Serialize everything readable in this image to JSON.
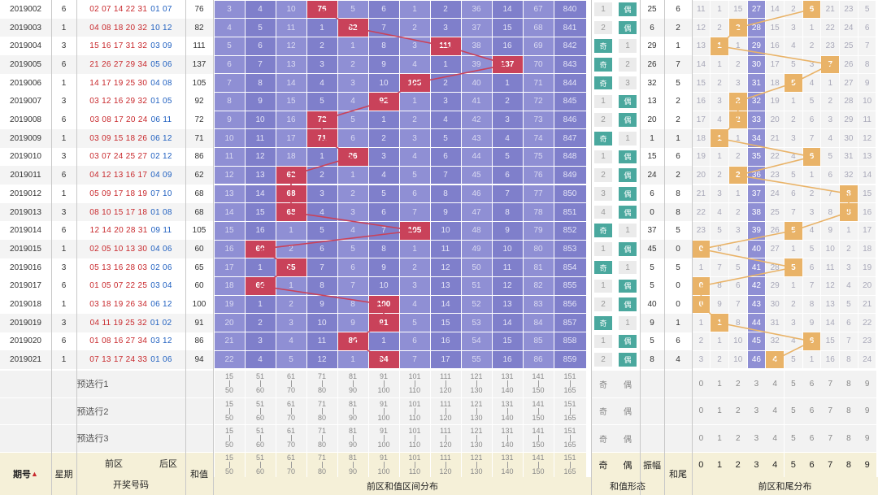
{
  "colors": {
    "hit": "#c9425a",
    "purple": "#8f8fd4",
    "tail_hit": "#e9b368",
    "line_sum": "#c9425a",
    "line_tail": "#e9b368",
    "teal": "#4aa89e"
  },
  "sum_ranges": [
    [
      "15",
      "50"
    ],
    [
      "51",
      "60"
    ],
    [
      "61",
      "70"
    ],
    [
      "71",
      "80"
    ],
    [
      "81",
      "90"
    ],
    [
      "91",
      "100"
    ],
    [
      "101",
      "110"
    ],
    [
      "111",
      "120"
    ],
    [
      "121",
      "130"
    ],
    [
      "131",
      "140"
    ],
    [
      "141",
      "150"
    ],
    [
      "151",
      "165"
    ]
  ],
  "oe_labels": [
    "奇",
    "偶"
  ],
  "tail_digits": [
    "0",
    "1",
    "2",
    "3",
    "4",
    "5",
    "6",
    "7",
    "8",
    "9"
  ],
  "preselect_labels": [
    "预选行1",
    "预选行2",
    "预选行3"
  ],
  "header": {
    "issue": "期号",
    "sort_icon": "sort-icon",
    "week": "星期",
    "front": "前区",
    "back": "后区",
    "draw": "开奖号码",
    "sum": "和值",
    "sum_dist": "前区和值区间分布",
    "odd": "奇",
    "even": "偶",
    "amp": "振幅",
    "shape": "和值形态",
    "tail": "和尾",
    "tail_dist": "前区和尾分布"
  },
  "rows": [
    {
      "issue": "2019002",
      "week": "6",
      "front": "02 07 14 22 31",
      "back": "01 07",
      "sum": "76",
      "dist": [
        "3",
        "4",
        "10",
        "76",
        "5",
        "6",
        "1",
        "2",
        "36",
        "14",
        "67",
        "840"
      ],
      "hit": 3,
      "oe": [
        "1",
        "偶"
      ],
      "oe_hit": 1,
      "amp": "25",
      "tail": "6",
      "tails": [
        "11",
        "1",
        "15",
        "27",
        "14",
        "2",
        "6",
        "21",
        "23",
        "5"
      ],
      "tail_hit": 6
    },
    {
      "issue": "2019003",
      "week": "1",
      "front": "04 08 18 20 32",
      "back": "10 12",
      "sum": "82",
      "dist": [
        "4",
        "5",
        "11",
        "1",
        "82",
        "7",
        "2",
        "3",
        "37",
        "15",
        "68",
        "841"
      ],
      "hit": 4,
      "oe": [
        "2",
        "偶"
      ],
      "oe_hit": 1,
      "amp": "6",
      "tail": "2",
      "tails": [
        "12",
        "2",
        "2",
        "28",
        "15",
        "3",
        "1",
        "22",
        "24",
        "6"
      ],
      "tail_hit": 2
    },
    {
      "issue": "2019004",
      "week": "3",
      "front": "15 16 17 31 32",
      "back": "03 09",
      "sum": "111",
      "dist": [
        "5",
        "6",
        "12",
        "2",
        "1",
        "8",
        "3",
        "111",
        "38",
        "16",
        "69",
        "842"
      ],
      "hit": 7,
      "oe": [
        "奇",
        "1"
      ],
      "oe_hit": 0,
      "amp": "29",
      "tail": "1",
      "tails": [
        "13",
        "1",
        "1",
        "29",
        "16",
        "4",
        "2",
        "23",
        "25",
        "7"
      ],
      "tail_hit": 1
    },
    {
      "issue": "2019005",
      "week": "6",
      "front": "21 26 27 29 34",
      "back": "05 06",
      "sum": "137",
      "dist": [
        "6",
        "7",
        "13",
        "3",
        "2",
        "9",
        "4",
        "1",
        "39",
        "137",
        "70",
        "843"
      ],
      "hit": 9,
      "oe": [
        "奇",
        "2"
      ],
      "oe_hit": 0,
      "amp": "26",
      "tail": "7",
      "tails": [
        "14",
        "1",
        "2",
        "30",
        "17",
        "5",
        "3",
        "7",
        "26",
        "8"
      ],
      "tail_hit": 7
    },
    {
      "issue": "2019006",
      "week": "1",
      "front": "14 17 19 25 30",
      "back": "04 08",
      "sum": "105",
      "dist": [
        "7",
        "8",
        "14",
        "4",
        "3",
        "10",
        "105",
        "2",
        "40",
        "1",
        "71",
        "844"
      ],
      "hit": 6,
      "oe": [
        "奇",
        "3"
      ],
      "oe_hit": 0,
      "amp": "32",
      "tail": "5",
      "tails": [
        "15",
        "2",
        "3",
        "31",
        "18",
        "5",
        "4",
        "1",
        "27",
        "9"
      ],
      "tail_hit": 5
    },
    {
      "issue": "2019007",
      "week": "3",
      "front": "03 12 16 29 32",
      "back": "01 05",
      "sum": "92",
      "dist": [
        "8",
        "9",
        "15",
        "5",
        "4",
        "92",
        "1",
        "3",
        "41",
        "2",
        "72",
        "845"
      ],
      "hit": 5,
      "oe": [
        "1",
        "偶"
      ],
      "oe_hit": 1,
      "amp": "13",
      "tail": "2",
      "tails": [
        "16",
        "3",
        "2",
        "32",
        "19",
        "1",
        "5",
        "2",
        "28",
        "10"
      ],
      "tail_hit": 2
    },
    {
      "issue": "2019008",
      "week": "6",
      "front": "03 08 17 20 24",
      "back": "06 11",
      "sum": "72",
      "dist": [
        "9",
        "10",
        "16",
        "72",
        "5",
        "1",
        "2",
        "4",
        "42",
        "3",
        "73",
        "846"
      ],
      "hit": 3,
      "oe": [
        "2",
        "偶"
      ],
      "oe_hit": 1,
      "amp": "20",
      "tail": "2",
      "tails": [
        "17",
        "4",
        "2",
        "33",
        "20",
        "2",
        "6",
        "3",
        "29",
        "11"
      ],
      "tail_hit": 2
    },
    {
      "issue": "2019009",
      "week": "1",
      "front": "03 09 15 18 26",
      "back": "06 12",
      "sum": "71",
      "dist": [
        "10",
        "11",
        "17",
        "71",
        "6",
        "2",
        "3",
        "5",
        "43",
        "4",
        "74",
        "847"
      ],
      "hit": 3,
      "oe": [
        "奇",
        "1"
      ],
      "oe_hit": 0,
      "amp": "1",
      "tail": "1",
      "tails": [
        "18",
        "1",
        "1",
        "34",
        "21",
        "3",
        "7",
        "4",
        "30",
        "12"
      ],
      "tail_hit": 1
    },
    {
      "issue": "2019010",
      "week": "3",
      "front": "03 07 24 25 27",
      "back": "02 12",
      "sum": "86",
      "dist": [
        "11",
        "12",
        "18",
        "1",
        "86",
        "3",
        "4",
        "6",
        "44",
        "5",
        "75",
        "848"
      ],
      "hit": 4,
      "oe": [
        "1",
        "偶"
      ],
      "oe_hit": 1,
      "amp": "15",
      "tail": "6",
      "tails": [
        "19",
        "1",
        "2",
        "35",
        "22",
        "4",
        "6",
        "5",
        "31",
        "13"
      ],
      "tail_hit": 6
    },
    {
      "issue": "2019011",
      "week": "6",
      "front": "04 12 13 16 17",
      "back": "04 09",
      "sum": "62",
      "dist": [
        "12",
        "13",
        "62",
        "2",
        "1",
        "4",
        "5",
        "7",
        "45",
        "6",
        "76",
        "849"
      ],
      "hit": 2,
      "oe": [
        "2",
        "偶"
      ],
      "oe_hit": 1,
      "amp": "24",
      "tail": "2",
      "tails": [
        "20",
        "2",
        "2",
        "36",
        "23",
        "5",
        "1",
        "6",
        "32",
        "14"
      ],
      "tail_hit": 2
    },
    {
      "issue": "2019012",
      "week": "1",
      "front": "05 09 17 18 19",
      "back": "07 10",
      "sum": "68",
      "dist": [
        "13",
        "14",
        "68",
        "3",
        "2",
        "5",
        "6",
        "8",
        "46",
        "7",
        "77",
        "850"
      ],
      "hit": 2,
      "oe": [
        "3",
        "偶"
      ],
      "oe_hit": 1,
      "amp": "6",
      "tail": "8",
      "tails": [
        "21",
        "3",
        "1",
        "37",
        "24",
        "6",
        "2",
        "7",
        "8",
        "15"
      ],
      "tail_hit": 8
    },
    {
      "issue": "2019013",
      "week": "3",
      "front": "08 10 15 17 18",
      "back": "01 08",
      "sum": "68",
      "dist": [
        "14",
        "15",
        "68",
        "4",
        "3",
        "6",
        "7",
        "9",
        "47",
        "8",
        "78",
        "851"
      ],
      "hit": 2,
      "oe": [
        "4",
        "偶"
      ],
      "oe_hit": 1,
      "amp": "0",
      "tail": "8",
      "tails": [
        "22",
        "4",
        "2",
        "38",
        "25",
        "7",
        "3",
        "8",
        "8",
        "16"
      ],
      "tail_hit": 8
    },
    {
      "issue": "2019014",
      "week": "6",
      "front": "12 14 20 28 31",
      "back": "09 11",
      "sum": "105",
      "dist": [
        "15",
        "16",
        "1",
        "5",
        "4",
        "7",
        "105",
        "10",
        "48",
        "9",
        "79",
        "852"
      ],
      "hit": 6,
      "oe": [
        "奇",
        "1"
      ],
      "oe_hit": 0,
      "amp": "37",
      "tail": "5",
      "tails": [
        "23",
        "5",
        "3",
        "39",
        "26",
        "5",
        "4",
        "9",
        "1",
        "17"
      ],
      "tail_hit": 5
    },
    {
      "issue": "2019015",
      "week": "1",
      "front": "02 05 10 13 30",
      "back": "04 06",
      "sum": "60",
      "dist": [
        "16",
        "60",
        "2",
        "6",
        "5",
        "8",
        "1",
        "11",
        "49",
        "10",
        "80",
        "853"
      ],
      "hit": 1,
      "oe": [
        "1",
        "偶"
      ],
      "oe_hit": 1,
      "amp": "45",
      "tail": "0",
      "tails": [
        "0",
        "6",
        "4",
        "40",
        "27",
        "1",
        "5",
        "10",
        "2",
        "18"
      ],
      "tail_hit": 0
    },
    {
      "issue": "2019016",
      "week": "3",
      "front": "05 13 16 28 03",
      "back": "02 06",
      "sum": "65",
      "dist": [
        "17",
        "1",
        "65",
        "7",
        "6",
        "9",
        "2",
        "12",
        "50",
        "11",
        "81",
        "854"
      ],
      "hit": 2,
      "oe": [
        "奇",
        "1"
      ],
      "oe_hit": 0,
      "amp": "5",
      "tail": "5",
      "tails": [
        "1",
        "7",
        "5",
        "41",
        "28",
        "5",
        "6",
        "11",
        "3",
        "19"
      ],
      "tail_hit": 5
    },
    {
      "issue": "2019017",
      "week": "6",
      "front": "01 05 07 22 25",
      "back": "03 04",
      "sum": "60",
      "dist": [
        "18",
        "60",
        "1",
        "8",
        "7",
        "10",
        "3",
        "13",
        "51",
        "12",
        "82",
        "855"
      ],
      "hit": 1,
      "oe": [
        "1",
        "偶"
      ],
      "oe_hit": 1,
      "amp": "5",
      "tail": "0",
      "tails": [
        "0",
        "8",
        "6",
        "42",
        "29",
        "1",
        "7",
        "12",
        "4",
        "20"
      ],
      "tail_hit": 0
    },
    {
      "issue": "2019018",
      "week": "1",
      "front": "03 18 19 26 34",
      "back": "06 12",
      "sum": "100",
      "dist": [
        "19",
        "1",
        "2",
        "9",
        "8",
        "100",
        "4",
        "14",
        "52",
        "13",
        "83",
        "856"
      ],
      "hit": 5,
      "oe": [
        "2",
        "偶"
      ],
      "oe_hit": 1,
      "amp": "40",
      "tail": "0",
      "tails": [
        "0",
        "9",
        "7",
        "43",
        "30",
        "2",
        "8",
        "13",
        "5",
        "21"
      ],
      "tail_hit": 0
    },
    {
      "issue": "2019019",
      "week": "3",
      "front": "04 11 19 25 32",
      "back": "01 02",
      "sum": "91",
      "dist": [
        "20",
        "2",
        "3",
        "10",
        "9",
        "91",
        "5",
        "15",
        "53",
        "14",
        "84",
        "857"
      ],
      "hit": 5,
      "oe": [
        "奇",
        "1"
      ],
      "oe_hit": 0,
      "amp": "9",
      "tail": "1",
      "tails": [
        "1",
        "1",
        "8",
        "44",
        "31",
        "3",
        "9",
        "14",
        "6",
        "22"
      ],
      "tail_hit": 1
    },
    {
      "issue": "2019020",
      "week": "6",
      "front": "01 08 16 27 34",
      "back": "03 12",
      "sum": "86",
      "dist": [
        "21",
        "3",
        "4",
        "11",
        "86",
        "1",
        "6",
        "16",
        "54",
        "15",
        "85",
        "858"
      ],
      "hit": 4,
      "oe": [
        "1",
        "偶"
      ],
      "oe_hit": 1,
      "amp": "5",
      "tail": "6",
      "tails": [
        "2",
        "1",
        "10",
        "45",
        "32",
        "4",
        "6",
        "15",
        "7",
        "23"
      ],
      "tail_hit": 6
    },
    {
      "issue": "2019021",
      "week": "1",
      "front": "07 13 17 24 33",
      "back": "01 06",
      "sum": "94",
      "dist": [
        "22",
        "4",
        "5",
        "12",
        "1",
        "94",
        "7",
        "17",
        "55",
        "16",
        "86",
        "859"
      ],
      "hit": 5,
      "oe": [
        "2",
        "偶"
      ],
      "oe_hit": 1,
      "amp": "8",
      "tail": "4",
      "tails": [
        "3",
        "2",
        "10",
        "46",
        "4",
        "5",
        "1",
        "16",
        "8",
        "24"
      ],
      "tail_hit": 4
    }
  ]
}
